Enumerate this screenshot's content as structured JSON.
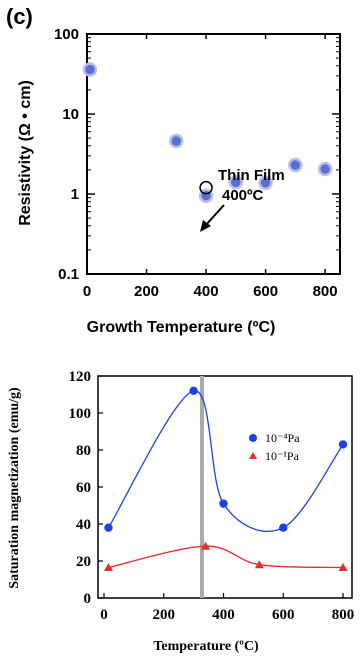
{
  "chart_data": [
    {
      "type": "scatter",
      "panel_label": "(c)",
      "title": "",
      "xlabel": "Growth Temperature (ºC)",
      "ylabel": "Resistivity (Ω • cm)",
      "xlim": [
        0,
        850
      ],
      "ylim": [
        0.1,
        100
      ],
      "yscale": "log",
      "xticks": [
        "0",
        "200",
        "400",
        "600",
        "800"
      ],
      "yticks": [
        "0.1",
        "1",
        "10",
        "100"
      ],
      "grid": false,
      "marker_color": "#5a6fd6",
      "series": [
        {
          "x": [
            10,
            300,
            400,
            500,
            600,
            700,
            800
          ],
          "values": [
            36,
            4.6,
            0.95,
            1.4,
            1.38,
            2.3,
            2.05
          ]
        }
      ],
      "thin_film_point": {
        "x": 400,
        "value": 1.2
      },
      "annotation": {
        "line1": "Thin Film",
        "line2": "400ºC"
      }
    },
    {
      "type": "line",
      "title": "",
      "xlabel": "Temperature (ºC)",
      "ylabel": "Saturation magnetization (emu/g)",
      "xlim": [
        -20,
        830
      ],
      "ylim": [
        0,
        120
      ],
      "xticks": [
        "0",
        "200",
        "400",
        "600",
        "800"
      ],
      "yticks": [
        "0",
        "20",
        "40",
        "60",
        "80",
        "100",
        "120"
      ],
      "grid": false,
      "legend_position": "top-right",
      "vertical_marker_x": 330,
      "series": [
        {
          "name": "10⁻⁴Pa",
          "color": "#1f3fe8",
          "marker": "circle",
          "x": [
            15,
            300,
            400,
            600,
            800
          ],
          "values": [
            38,
            112,
            51,
            38,
            83
          ]
        },
        {
          "name": "10⁻¹Pa",
          "color": "#ee2a2a",
          "marker": "triangle",
          "x": [
            15,
            340,
            520,
            800
          ],
          "values": [
            16.5,
            28,
            18,
            16.5
          ]
        }
      ]
    }
  ]
}
